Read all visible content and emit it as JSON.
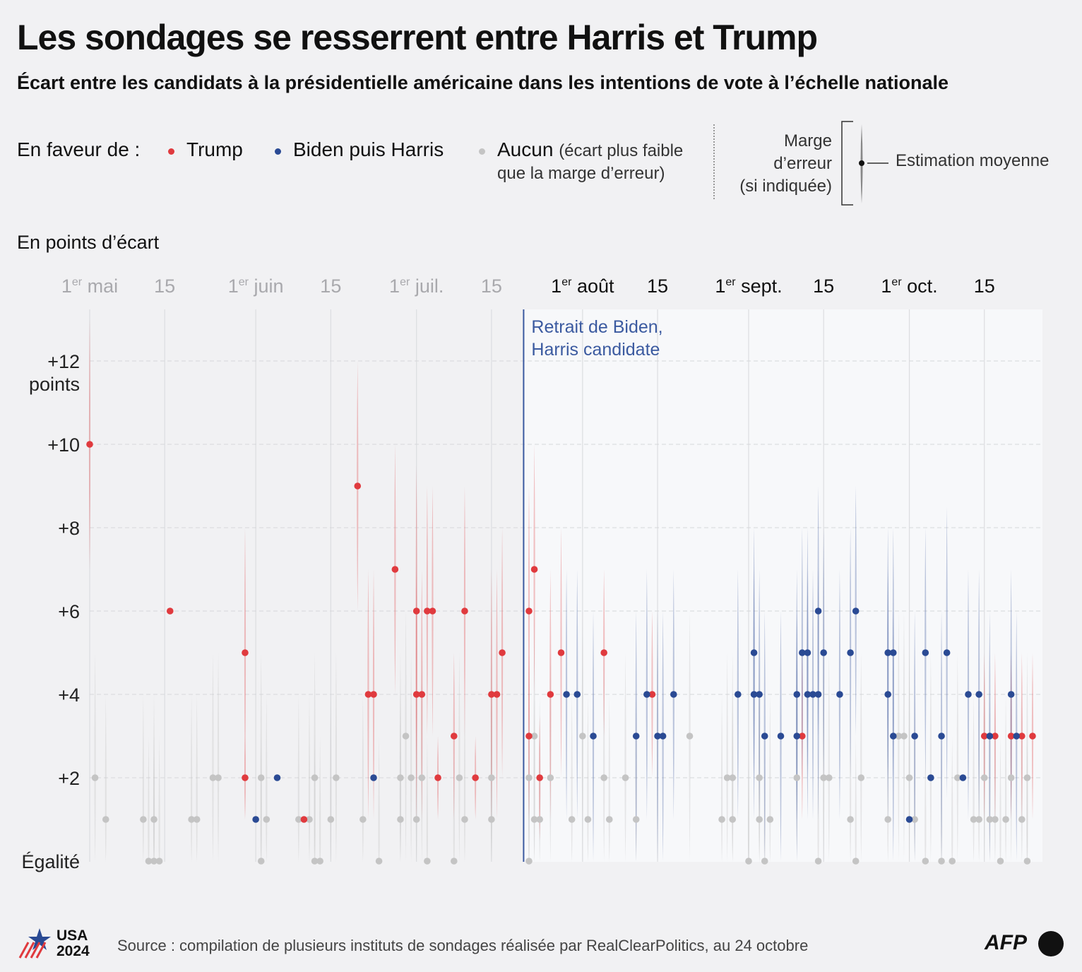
{
  "title": "Les sondages se resserrent entre Harris et Trump",
  "subtitle": "Écart entre les candidats à la présidentielle américaine dans les intentions de vote à l’échelle nationale",
  "legend": {
    "intro": "En faveur de :",
    "trump": "Trump",
    "harris": "Biden puis Harris",
    "none": "Aucun",
    "none_note": "(écart plus faible",
    "none_note2": "que la marge d’erreur)",
    "moe_line1": "Marge",
    "moe_line2": "d’erreur",
    "moe_line3": "(si indiquée)",
    "estimate": "Estimation moyenne"
  },
  "unit_label": "En points d’écart",
  "colors": {
    "trump": "#e03a3e",
    "harris": "#2a4a94",
    "none": "#c4c4c4",
    "event": "#3b5aa0"
  },
  "footer": {
    "source": "Source : compilation de plusieurs instituts de sondages réalisée par RealClearPolitics, au 24 octobre",
    "usa": "USA",
    "year": "2024",
    "agency": "AFP"
  },
  "chart_data": {
    "type": "scatter",
    "x_axis": {
      "range": [
        "2024-05-01",
        "2024-10-24"
      ],
      "ticks": [
        {
          "date": "2024-05-01",
          "label": "1",
          "sup": "er",
          "rest": " mai"
        },
        {
          "date": "2024-05-15",
          "label": "15",
          "sup": "",
          "rest": ""
        },
        {
          "date": "2024-06-01",
          "label": "1",
          "sup": "er",
          "rest": " juin"
        },
        {
          "date": "2024-06-15",
          "label": "15",
          "sup": "",
          "rest": ""
        },
        {
          "date": "2024-07-01",
          "label": "1",
          "sup": "er",
          "rest": " juil."
        },
        {
          "date": "2024-07-15",
          "label": "15",
          "sup": "",
          "rest": ""
        },
        {
          "date": "2024-08-01",
          "label": "1",
          "sup": "er",
          "rest": " août"
        },
        {
          "date": "2024-08-15",
          "label": "15",
          "sup": "",
          "rest": ""
        },
        {
          "date": "2024-09-01",
          "label": "1",
          "sup": "er",
          "rest": " sept."
        },
        {
          "date": "2024-09-15",
          "label": "15",
          "sup": "",
          "rest": ""
        },
        {
          "date": "2024-10-01",
          "label": "1",
          "sup": "er",
          "rest": " oct."
        },
        {
          "date": "2024-10-15",
          "label": "15",
          "sup": "",
          "rest": ""
        }
      ]
    },
    "y_axis": {
      "range": [
        0,
        13
      ],
      "ticks": [
        {
          "value": 0,
          "label": "Égalité"
        },
        {
          "value": 2,
          "label": "+2"
        },
        {
          "value": 4,
          "label": "+4"
        },
        {
          "value": 6,
          "label": "+6"
        },
        {
          "value": 8,
          "label": "+8"
        },
        {
          "value": 10,
          "label": "+10"
        },
        {
          "value": 12,
          "label": "+12",
          "label2": "points"
        }
      ]
    },
    "event": {
      "date": "2024-07-21",
      "label_line1": "Retrait de Biden,",
      "label_line2": "Harris candidate"
    },
    "series": [
      {
        "name": "Trump",
        "key": "trump",
        "points": [
          {
            "x": "2024-05-01",
            "y": 10,
            "moe": 3
          },
          {
            "x": "2024-05-16",
            "y": 6,
            "moe": 0
          },
          {
            "x": "2024-05-30",
            "y": 2,
            "moe": 1
          },
          {
            "x": "2024-05-30",
            "y": 5,
            "moe": 3
          },
          {
            "x": "2024-06-10",
            "y": 1,
            "moe": 0
          },
          {
            "x": "2024-06-20",
            "y": 9,
            "moe": 3
          },
          {
            "x": "2024-06-22",
            "y": 4,
            "moe": 3
          },
          {
            "x": "2024-06-23",
            "y": 4,
            "moe": 3
          },
          {
            "x": "2024-06-27",
            "y": 7,
            "moe": 3
          },
          {
            "x": "2024-07-01",
            "y": 4,
            "moe": 3
          },
          {
            "x": "2024-07-01",
            "y": 6,
            "moe": 3.5
          },
          {
            "x": "2024-07-02",
            "y": 4,
            "moe": 3
          },
          {
            "x": "2024-07-03",
            "y": 6,
            "moe": 3
          },
          {
            "x": "2024-07-04",
            "y": 6,
            "moe": 3
          },
          {
            "x": "2024-07-05",
            "y": 2,
            "moe": 1
          },
          {
            "x": "2024-07-08",
            "y": 3,
            "moe": 2
          },
          {
            "x": "2024-07-10",
            "y": 6,
            "moe": 3
          },
          {
            "x": "2024-07-12",
            "y": 2,
            "moe": 1
          },
          {
            "x": "2024-07-15",
            "y": 4,
            "moe": 3
          },
          {
            "x": "2024-07-16",
            "y": 4,
            "moe": 3
          },
          {
            "x": "2024-07-17",
            "y": 5,
            "moe": 3
          },
          {
            "x": "2024-07-22",
            "y": 6,
            "moe": 3
          },
          {
            "x": "2024-07-22",
            "y": 3,
            "moe": 2
          },
          {
            "x": "2024-07-23",
            "y": 7,
            "moe": 3
          },
          {
            "x": "2024-07-24",
            "y": 2,
            "moe": 1.5
          },
          {
            "x": "2024-07-26",
            "y": 4,
            "moe": 3
          },
          {
            "x": "2024-07-28",
            "y": 5,
            "moe": 3
          },
          {
            "x": "2024-08-05",
            "y": 5,
            "moe": 2
          },
          {
            "x": "2024-08-14",
            "y": 4,
            "moe": 2
          },
          {
            "x": "2024-09-11",
            "y": 3,
            "moe": 2
          },
          {
            "x": "2024-10-15",
            "y": 3,
            "moe": 2
          },
          {
            "x": "2024-10-17",
            "y": 3,
            "moe": 2
          },
          {
            "x": "2024-10-20",
            "y": 3,
            "moe": 2
          },
          {
            "x": "2024-10-22",
            "y": 3,
            "moe": 2
          },
          {
            "x": "2024-10-24",
            "y": 3,
            "moe": 2
          }
        ]
      },
      {
        "name": "Biden puis Harris",
        "key": "harris",
        "points": [
          {
            "x": "2024-06-01",
            "y": 1,
            "moe": 0
          },
          {
            "x": "2024-06-05",
            "y": 2,
            "moe": 0
          },
          {
            "x": "2024-06-23",
            "y": 2,
            "moe": 0
          },
          {
            "x": "2024-07-29",
            "y": 4,
            "moe": 3
          },
          {
            "x": "2024-07-31",
            "y": 4,
            "moe": 3
          },
          {
            "x": "2024-08-03",
            "y": 3,
            "moe": 3
          },
          {
            "x": "2024-08-11",
            "y": 3,
            "moe": 3
          },
          {
            "x": "2024-08-13",
            "y": 4,
            "moe": 3
          },
          {
            "x": "2024-08-15",
            "y": 3,
            "moe": 3
          },
          {
            "x": "2024-08-16",
            "y": 3,
            "moe": 3
          },
          {
            "x": "2024-08-18",
            "y": 4,
            "moe": 3
          },
          {
            "x": "2024-08-30",
            "y": 4,
            "moe": 3
          },
          {
            "x": "2024-09-02",
            "y": 4,
            "moe": 3
          },
          {
            "x": "2024-09-02",
            "y": 5,
            "moe": 3
          },
          {
            "x": "2024-09-03",
            "y": 4,
            "moe": 3
          },
          {
            "x": "2024-09-04",
            "y": 3,
            "moe": 3
          },
          {
            "x": "2024-09-07",
            "y": 3,
            "moe": 3
          },
          {
            "x": "2024-09-10",
            "y": 4,
            "moe": 3
          },
          {
            "x": "2024-09-10",
            "y": 3,
            "moe": 3
          },
          {
            "x": "2024-09-11",
            "y": 5,
            "moe": 3
          },
          {
            "x": "2024-09-12",
            "y": 4,
            "moe": 3
          },
          {
            "x": "2024-09-12",
            "y": 5,
            "moe": 3
          },
          {
            "x": "2024-09-13",
            "y": 4,
            "moe": 3
          },
          {
            "x": "2024-09-14",
            "y": 6,
            "moe": 3
          },
          {
            "x": "2024-09-14",
            "y": 4,
            "moe": 3
          },
          {
            "x": "2024-09-15",
            "y": 5,
            "moe": 3
          },
          {
            "x": "2024-09-18",
            "y": 4,
            "moe": 3
          },
          {
            "x": "2024-09-20",
            "y": 5,
            "moe": 3
          },
          {
            "x": "2024-09-21",
            "y": 6,
            "moe": 3
          },
          {
            "x": "2024-09-27",
            "y": 5,
            "moe": 3
          },
          {
            "x": "2024-09-27",
            "y": 4,
            "moe": 3
          },
          {
            "x": "2024-09-28",
            "y": 3,
            "moe": 3
          },
          {
            "x": "2024-09-28",
            "y": 5,
            "moe": 3
          },
          {
            "x": "2024-10-01",
            "y": 1,
            "moe": 0
          },
          {
            "x": "2024-10-02",
            "y": 3,
            "moe": 3
          },
          {
            "x": "2024-10-04",
            "y": 5,
            "moe": 3
          },
          {
            "x": "2024-10-05",
            "y": 2,
            "moe": 0
          },
          {
            "x": "2024-10-07",
            "y": 3,
            "moe": 3
          },
          {
            "x": "2024-10-08",
            "y": 5,
            "moe": 3.5
          },
          {
            "x": "2024-10-11",
            "y": 2,
            "moe": 0
          },
          {
            "x": "2024-10-12",
            "y": 4,
            "moe": 3
          },
          {
            "x": "2024-10-14",
            "y": 4,
            "moe": 3
          },
          {
            "x": "2024-10-16",
            "y": 3,
            "moe": 3
          },
          {
            "x": "2024-10-20",
            "y": 4,
            "moe": 3
          },
          {
            "x": "2024-10-21",
            "y": 3,
            "moe": 3
          }
        ]
      },
      {
        "name": "Aucun",
        "key": "none",
        "points": [
          {
            "x": "2024-05-02",
            "y": 2,
            "moe": 3
          },
          {
            "x": "2024-05-04",
            "y": 1,
            "moe": 3
          },
          {
            "x": "2024-05-11",
            "y": 1,
            "moe": 3
          },
          {
            "x": "2024-05-12",
            "y": 0,
            "moe": 3
          },
          {
            "x": "2024-05-13",
            "y": 1,
            "moe": 3
          },
          {
            "x": "2024-05-13",
            "y": 0,
            "moe": 3
          },
          {
            "x": "2024-05-14",
            "y": 0,
            "moe": 3
          },
          {
            "x": "2024-05-20",
            "y": 1,
            "moe": 3
          },
          {
            "x": "2024-05-21",
            "y": 1,
            "moe": 3
          },
          {
            "x": "2024-05-24",
            "y": 2,
            "moe": 3
          },
          {
            "x": "2024-05-25",
            "y": 2,
            "moe": 3
          },
          {
            "x": "2024-06-02",
            "y": 2,
            "moe": 3
          },
          {
            "x": "2024-06-02",
            "y": 0,
            "moe": 3
          },
          {
            "x": "2024-06-03",
            "y": 1,
            "moe": 3
          },
          {
            "x": "2024-06-09",
            "y": 1,
            "moe": 3
          },
          {
            "x": "2024-06-11",
            "y": 1,
            "moe": 3
          },
          {
            "x": "2024-06-12",
            "y": 0,
            "moe": 3
          },
          {
            "x": "2024-06-12",
            "y": 2,
            "moe": 3
          },
          {
            "x": "2024-06-13",
            "y": 0,
            "moe": 3
          },
          {
            "x": "2024-06-15",
            "y": 1,
            "moe": 3
          },
          {
            "x": "2024-06-16",
            "y": 2,
            "moe": 3
          },
          {
            "x": "2024-06-21",
            "y": 1,
            "moe": 3
          },
          {
            "x": "2024-06-24",
            "y": 0,
            "moe": 3
          },
          {
            "x": "2024-06-28",
            "y": 2,
            "moe": 3
          },
          {
            "x": "2024-06-28",
            "y": 1,
            "moe": 3
          },
          {
            "x": "2024-06-29",
            "y": 3,
            "moe": 3
          },
          {
            "x": "2024-06-30",
            "y": 2,
            "moe": 3
          },
          {
            "x": "2024-07-01",
            "y": 1,
            "moe": 3
          },
          {
            "x": "2024-07-02",
            "y": 2,
            "moe": 3
          },
          {
            "x": "2024-07-03",
            "y": 0,
            "moe": 3
          },
          {
            "x": "2024-07-08",
            "y": 0,
            "moe": 3
          },
          {
            "x": "2024-07-09",
            "y": 2,
            "moe": 3
          },
          {
            "x": "2024-07-10",
            "y": 1,
            "moe": 3
          },
          {
            "x": "2024-07-15",
            "y": 2,
            "moe": 3
          },
          {
            "x": "2024-07-15",
            "y": 1,
            "moe": 3
          },
          {
            "x": "2024-07-22",
            "y": 0,
            "moe": 3
          },
          {
            "x": "2024-07-22",
            "y": 2,
            "moe": 3
          },
          {
            "x": "2024-07-23",
            "y": 1,
            "moe": 3
          },
          {
            "x": "2024-07-23",
            "y": 3,
            "moe": 3
          },
          {
            "x": "2024-07-24",
            "y": 1,
            "moe": 3
          },
          {
            "x": "2024-07-26",
            "y": 2,
            "moe": 3
          },
          {
            "x": "2024-07-30",
            "y": 1,
            "moe": 3
          },
          {
            "x": "2024-08-01",
            "y": 3,
            "moe": 3
          },
          {
            "x": "2024-08-02",
            "y": 1,
            "moe": 3
          },
          {
            "x": "2024-08-05",
            "y": 2,
            "moe": 3
          },
          {
            "x": "2024-08-06",
            "y": 1,
            "moe": 3
          },
          {
            "x": "2024-08-09",
            "y": 2,
            "moe": 3
          },
          {
            "x": "2024-08-11",
            "y": 1,
            "moe": 3
          },
          {
            "x": "2024-08-21",
            "y": 3,
            "moe": 3
          },
          {
            "x": "2024-08-27",
            "y": 1,
            "moe": 3
          },
          {
            "x": "2024-08-28",
            "y": 2,
            "moe": 3
          },
          {
            "x": "2024-08-29",
            "y": 1,
            "moe": 3
          },
          {
            "x": "2024-08-29",
            "y": 2,
            "moe": 3
          },
          {
            "x": "2024-09-01",
            "y": 0,
            "moe": 3
          },
          {
            "x": "2024-09-03",
            "y": 2,
            "moe": 3
          },
          {
            "x": "2024-09-03",
            "y": 1,
            "moe": 3
          },
          {
            "x": "2024-09-04",
            "y": 0,
            "moe": 3
          },
          {
            "x": "2024-09-05",
            "y": 1,
            "moe": 3
          },
          {
            "x": "2024-09-10",
            "y": 2,
            "moe": 3
          },
          {
            "x": "2024-09-14",
            "y": 0,
            "moe": 3
          },
          {
            "x": "2024-09-15",
            "y": 2,
            "moe": 3
          },
          {
            "x": "2024-09-16",
            "y": 2,
            "moe": 3
          },
          {
            "x": "2024-09-20",
            "y": 1,
            "moe": 3
          },
          {
            "x": "2024-09-21",
            "y": 0,
            "moe": 3
          },
          {
            "x": "2024-09-22",
            "y": 2,
            "moe": 3
          },
          {
            "x": "2024-09-27",
            "y": 1,
            "moe": 3
          },
          {
            "x": "2024-09-29",
            "y": 3,
            "moe": 3
          },
          {
            "x": "2024-09-30",
            "y": 3,
            "moe": 3
          },
          {
            "x": "2024-10-01",
            "y": 2,
            "moe": 3
          },
          {
            "x": "2024-10-02",
            "y": 1,
            "moe": 3
          },
          {
            "x": "2024-10-04",
            "y": 0,
            "moe": 3
          },
          {
            "x": "2024-10-05",
            "y": 2,
            "moe": 3
          },
          {
            "x": "2024-10-07",
            "y": 0,
            "moe": 3
          },
          {
            "x": "2024-10-09",
            "y": 0,
            "moe": 3
          },
          {
            "x": "2024-10-10",
            "y": 2,
            "moe": 3
          },
          {
            "x": "2024-10-13",
            "y": 1,
            "moe": 3
          },
          {
            "x": "2024-10-14",
            "y": 1,
            "moe": 3
          },
          {
            "x": "2024-10-15",
            "y": 2,
            "moe": 3
          },
          {
            "x": "2024-10-16",
            "y": 1,
            "moe": 3
          },
          {
            "x": "2024-10-17",
            "y": 1,
            "moe": 3
          },
          {
            "x": "2024-10-18",
            "y": 0,
            "moe": 3
          },
          {
            "x": "2024-10-19",
            "y": 1,
            "moe": 3
          },
          {
            "x": "2024-10-20",
            "y": 2,
            "moe": 3
          },
          {
            "x": "2024-10-22",
            "y": 1,
            "moe": 3
          },
          {
            "x": "2024-10-23",
            "y": 0,
            "moe": 3
          },
          {
            "x": "2024-10-23",
            "y": 2,
            "moe": 3
          }
        ]
      }
    ]
  }
}
